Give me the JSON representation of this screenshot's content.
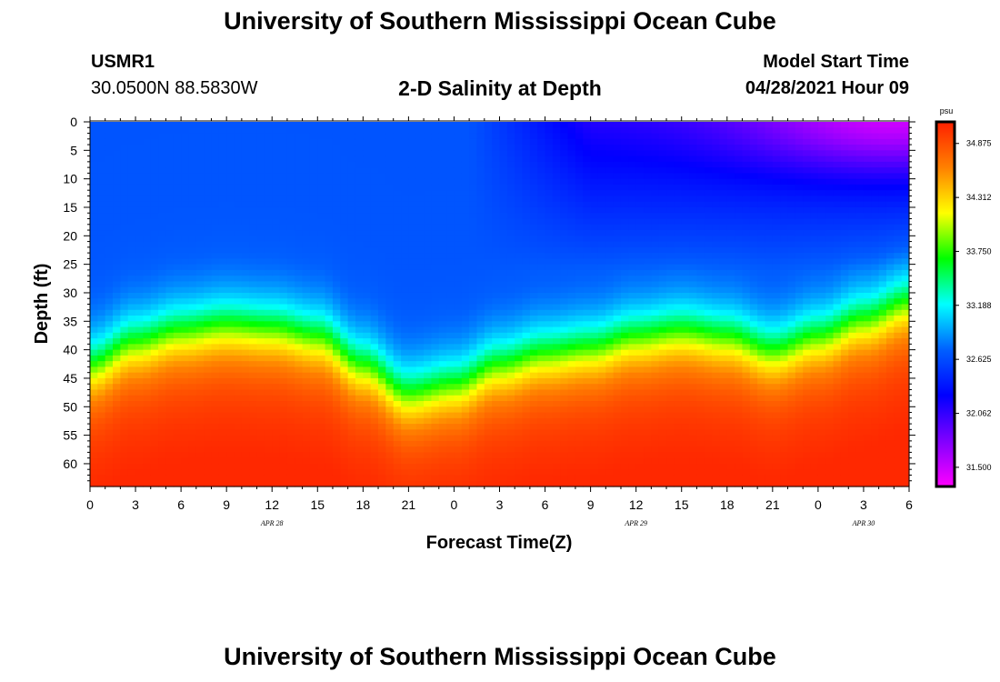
{
  "header": {
    "title": "University of Southern Mississippi Ocean Cube",
    "station": "USMR1",
    "coords": "30.0500N  88.5830W",
    "subtitle": "2-D Salinity at Depth",
    "model_start_label": "Model Start Time",
    "model_start_value": "04/28/2021 Hour 09",
    "footer_title": "University of Southern Mississippi Ocean Cube"
  },
  "colors": {
    "frame": "#000000",
    "ramp": [
      "#ff00ff",
      "#8000ff",
      "#0000ff",
      "#0060ff",
      "#00ffff",
      "#00ff00",
      "#ffff00",
      "#ff8000",
      "#ff2000"
    ]
  },
  "chart_data": {
    "type": "heatmap",
    "title": "2-D Salinity at Depth",
    "xlabel": "Forecast Time(Z)",
    "ylabel": "Depth (ft)",
    "x_ticks": [
      "0",
      "3",
      "6",
      "9",
      "12",
      "15",
      "18",
      "21",
      "0",
      "3",
      "6",
      "9",
      "12",
      "15",
      "18",
      "21",
      "0",
      "3",
      "6"
    ],
    "date_labels": [
      {
        "label": "APR  28",
        "tick_index": 4
      },
      {
        "label": "APR  29",
        "tick_index": 12
      },
      {
        "label": "APR  30",
        "tick_index": 17
      }
    ],
    "y_ticks": [
      "0",
      "5",
      "10",
      "15",
      "20",
      "25",
      "30",
      "35",
      "40",
      "45",
      "50",
      "55",
      "60"
    ],
    "ylim": [
      0,
      64
    ],
    "x_hours": 54,
    "colorbar": {
      "unit": "psu",
      "labels": [
        "34.875",
        "34.312",
        "33.750",
        "33.188",
        "32.625",
        "32.062",
        "31.500"
      ],
      "range": [
        31.3,
        35.1
      ]
    },
    "halocline_depth_profile": [
      {
        "hour": 0,
        "depth": 43
      },
      {
        "hour": 3,
        "depth": 39
      },
      {
        "hour": 6,
        "depth": 37
      },
      {
        "hour": 9,
        "depth": 36
      },
      {
        "hour": 12,
        "depth": 36.5
      },
      {
        "hour": 15,
        "depth": 38
      },
      {
        "hour": 18,
        "depth": 43
      },
      {
        "hour": 21,
        "depth": 48
      },
      {
        "hour": 24,
        "depth": 46.5
      },
      {
        "hour": 27,
        "depth": 43
      },
      {
        "hour": 30,
        "depth": 41
      },
      {
        "hour": 33,
        "depth": 40
      },
      {
        "hour": 36,
        "depth": 38
      },
      {
        "hour": 39,
        "depth": 37
      },
      {
        "hour": 42,
        "depth": 38
      },
      {
        "hour": 45,
        "depth": 40.5
      },
      {
        "hour": 48,
        "depth": 38
      },
      {
        "hour": 51,
        "depth": 35
      },
      {
        "hour": 54,
        "depth": 32
      }
    ]
  }
}
